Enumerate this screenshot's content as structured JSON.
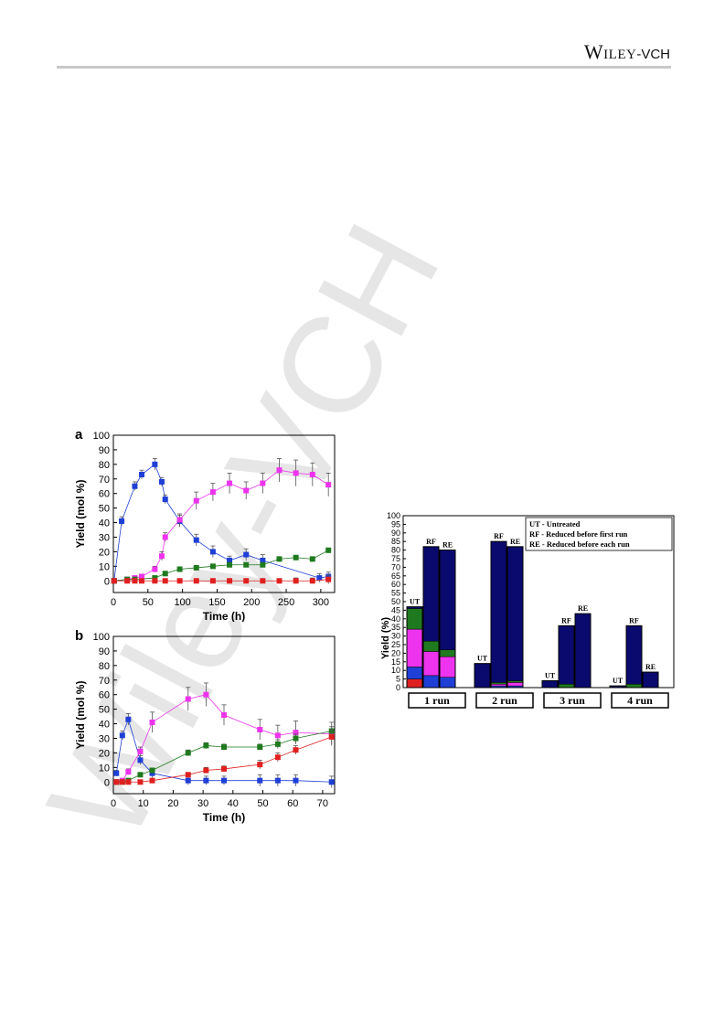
{
  "header": {
    "brand_main": "Wiley",
    "brand_sub": "-VCH",
    "watermark": "Wiley-VCH"
  },
  "colors": {
    "blue": "#1f3fd6",
    "magenta": "#ee33ee",
    "green": "#1f7a1f",
    "red": "#e02020",
    "navy": "#0a0a6e",
    "rule": "#c8c8c8"
  },
  "chart_data": [
    {
      "type": "line",
      "panel_label": "a",
      "xlabel": "Time (h)",
      "ylabel": "Yield (mol %)",
      "xlim": [
        0,
        320
      ],
      "ylim": [
        -8,
        100
      ],
      "xticks": [
        0,
        50,
        100,
        150,
        200,
        250,
        300
      ],
      "yticks": [
        0,
        10,
        20,
        30,
        40,
        50,
        60,
        70,
        80,
        90,
        100
      ],
      "series": [
        {
          "color": "blue",
          "points": [
            [
              1,
              0
            ],
            [
              12,
              41
            ],
            [
              31,
              65
            ],
            [
              41,
              73
            ],
            [
              60,
              80
            ],
            [
              70,
              68
            ],
            [
              75,
              56
            ],
            [
              96,
              41
            ],
            [
              120,
              28
            ],
            [
              144,
              20
            ],
            [
              168,
              14
            ],
            [
              192,
              18
            ],
            [
              216,
              14
            ],
            [
              298,
              2
            ],
            [
              311,
              3
            ]
          ],
          "errors": [
            0,
            3,
            3,
            3,
            4,
            3,
            3,
            4,
            4,
            4,
            3,
            4,
            4,
            3,
            3
          ]
        },
        {
          "color": "magenta",
          "points": [
            [
              1,
              0
            ],
            [
              20,
              1
            ],
            [
              31,
              2
            ],
            [
              41,
              3
            ],
            [
              60,
              8
            ],
            [
              70,
              17
            ],
            [
              75,
              30
            ],
            [
              96,
              42
            ],
            [
              120,
              55
            ],
            [
              144,
              61
            ],
            [
              168,
              67
            ],
            [
              192,
              62
            ],
            [
              216,
              67
            ],
            [
              240,
              76
            ],
            [
              264,
              74
            ],
            [
              288,
              73
            ],
            [
              311,
              66
            ]
          ],
          "errors": [
            0,
            1,
            1,
            1,
            2,
            3,
            3,
            4,
            6,
            6,
            7,
            6,
            7,
            8,
            9,
            8,
            8
          ]
        },
        {
          "color": "green",
          "points": [
            [
              1,
              0
            ],
            [
              20,
              1
            ],
            [
              31,
              1
            ],
            [
              60,
              2
            ],
            [
              75,
              5
            ],
            [
              96,
              8
            ],
            [
              120,
              9
            ],
            [
              144,
              10
            ],
            [
              168,
              11
            ],
            [
              192,
              11
            ],
            [
              216,
              11
            ],
            [
              240,
              15
            ],
            [
              264,
              16
            ],
            [
              288,
              15
            ],
            [
              311,
              21
            ]
          ],
          "errors": [
            0,
            1,
            1,
            1,
            1,
            1,
            1,
            1,
            1,
            1,
            1,
            1,
            1,
            1,
            1
          ]
        },
        {
          "color": "red",
          "points": [
            [
              1,
              0
            ],
            [
              20,
              0
            ],
            [
              31,
              0
            ],
            [
              41,
              0
            ],
            [
              60,
              0
            ],
            [
              75,
              0
            ],
            [
              96,
              0
            ],
            [
              120,
              0
            ],
            [
              144,
              0
            ],
            [
              168,
              0
            ],
            [
              192,
              0
            ],
            [
              216,
              0
            ],
            [
              240,
              0
            ],
            [
              264,
              0
            ],
            [
              288,
              0
            ],
            [
              311,
              1
            ]
          ],
          "errors": [
            0,
            1,
            1,
            1,
            1,
            1,
            1,
            1,
            1,
            1,
            1,
            1,
            1,
            2,
            2,
            3
          ]
        }
      ]
    },
    {
      "type": "line",
      "panel_label": "b",
      "xlabel": "Time (h)",
      "ylabel": "Yield (mol %)",
      "xlim": [
        0,
        74
      ],
      "ylim": [
        -8,
        100
      ],
      "xticks": [
        0,
        10,
        20,
        30,
        40,
        50,
        60,
        70
      ],
      "yticks": [
        0,
        10,
        20,
        30,
        40,
        50,
        60,
        70,
        80,
        90,
        100
      ],
      "series": [
        {
          "color": "blue",
          "points": [
            [
              1,
              6
            ],
            [
              3,
              32
            ],
            [
              5,
              43
            ],
            [
              9,
              15
            ],
            [
              13,
              6
            ],
            [
              25,
              1
            ],
            [
              31,
              1
            ],
            [
              37,
              1
            ],
            [
              49,
              1
            ],
            [
              55,
              1
            ],
            [
              61,
              1
            ],
            [
              73,
              0
            ]
          ],
          "errors": [
            2,
            3,
            4,
            3,
            3,
            3,
            3,
            3,
            4,
            4,
            4,
            4
          ]
        },
        {
          "color": "magenta",
          "points": [
            [
              1,
              0
            ],
            [
              3,
              1
            ],
            [
              5,
              7
            ],
            [
              9,
              21
            ],
            [
              13,
              41
            ],
            [
              25,
              57
            ],
            [
              31,
              60
            ],
            [
              37,
              46
            ],
            [
              49,
              36
            ],
            [
              55,
              32
            ],
            [
              61,
              34
            ],
            [
              73,
              33
            ]
          ],
          "errors": [
            1,
            1,
            2,
            3,
            7,
            8,
            8,
            7,
            7,
            7,
            8,
            8
          ]
        },
        {
          "color": "green",
          "points": [
            [
              1,
              0
            ],
            [
              3,
              0
            ],
            [
              5,
              1
            ],
            [
              9,
              5
            ],
            [
              13,
              8
            ],
            [
              25,
              20
            ],
            [
              31,
              25
            ],
            [
              37,
              24
            ],
            [
              49,
              24
            ],
            [
              55,
              26
            ],
            [
              61,
              30
            ],
            [
              73,
              35
            ]
          ],
          "errors": [
            1,
            1,
            1,
            1,
            1,
            2,
            2,
            2,
            2,
            3,
            3,
            3
          ]
        },
        {
          "color": "red",
          "points": [
            [
              1,
              0
            ],
            [
              3,
              0
            ],
            [
              5,
              0
            ],
            [
              9,
              0
            ],
            [
              13,
              1
            ],
            [
              25,
              5
            ],
            [
              31,
              8
            ],
            [
              37,
              9
            ],
            [
              49,
              12
            ],
            [
              55,
              17
            ],
            [
              61,
              22
            ],
            [
              73,
              31
            ]
          ],
          "errors": [
            1,
            1,
            1,
            1,
            1,
            1,
            2,
            2,
            3,
            3,
            3,
            5
          ]
        }
      ]
    },
    {
      "type": "bar",
      "stacked": true,
      "ylabel": "Yield (%)",
      "ylim": [
        0,
        100
      ],
      "yticks": [
        0,
        5,
        10,
        15,
        20,
        25,
        30,
        35,
        40,
        45,
        50,
        55,
        60,
        65,
        70,
        75,
        80,
        85,
        90,
        95,
        100
      ],
      "groups": [
        "1 run",
        "2 run",
        "3 run",
        "4 run"
      ],
      "legend": [
        "UT - Untreated",
        "RF - Reduced before first run",
        "RE - Reduced before each run"
      ],
      "legend_position": "top-right",
      "component_colors": [
        "red",
        "blue",
        "magenta",
        "green",
        "navy"
      ],
      "bars": [
        {
          "group": 0,
          "label": "UT",
          "stack": [
            5,
            7,
            22,
            12,
            1
          ]
        },
        {
          "group": 0,
          "label": "RF",
          "stack": [
            0,
            7,
            14,
            6,
            55
          ]
        },
        {
          "group": 0,
          "label": "RE",
          "stack": [
            0,
            6,
            12,
            4,
            58
          ]
        },
        {
          "group": 1,
          "label": "UT",
          "stack": [
            0,
            0,
            0,
            0,
            14
          ]
        },
        {
          "group": 1,
          "label": "RF",
          "stack": [
            0,
            1,
            1,
            1,
            82
          ]
        },
        {
          "group": 1,
          "label": "RE",
          "stack": [
            0,
            1,
            2,
            1,
            78
          ]
        },
        {
          "group": 2,
          "label": "UT",
          "stack": [
            0,
            0,
            0,
            0,
            4
          ]
        },
        {
          "group": 2,
          "label": "RF",
          "stack": [
            0,
            0,
            0,
            2,
            34
          ]
        },
        {
          "group": 2,
          "label": "RE",
          "stack": [
            0,
            0,
            0,
            0,
            43
          ]
        },
        {
          "group": 3,
          "label": "UT",
          "stack": [
            0,
            0,
            0,
            0,
            1
          ]
        },
        {
          "group": 3,
          "label": "RF",
          "stack": [
            0,
            0,
            0,
            2,
            34
          ]
        },
        {
          "group": 3,
          "label": "RE",
          "stack": [
            0,
            0,
            0,
            0,
            9
          ]
        }
      ]
    }
  ]
}
